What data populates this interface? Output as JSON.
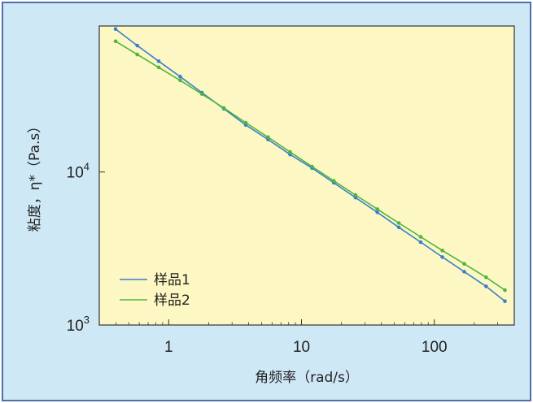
{
  "chart_data": {
    "type": "line",
    "xlabel": "角频率（rad/s）",
    "ylabel": "粘度，η*（Pa.s）",
    "xscale": "log",
    "yscale": "log",
    "xlim": [
      0.3,
      400
    ],
    "ylim": [
      1000,
      90000
    ],
    "xticks": [
      {
        "value": 1,
        "label": "1"
      },
      {
        "value": 10,
        "label": "10"
      },
      {
        "value": 100,
        "label": "100"
      }
    ],
    "yticks": [
      {
        "value": 1000,
        "base": "10",
        "exp": "3"
      },
      {
        "value": 10000,
        "base": "10",
        "exp": "4"
      }
    ],
    "grid": false,
    "legend_position": "bottom-left",
    "series": [
      {
        "name": "样品1",
        "color": "#3a7fc8",
        "x": [
          0.398,
          0.58,
          0.84,
          1.22,
          1.78,
          2.6,
          3.8,
          5.6,
          8.2,
          12,
          17.5,
          25.5,
          37.2,
          54,
          79,
          115,
          168,
          245,
          340
        ],
        "y": [
          86000,
          67000,
          53000,
          42000,
          33000,
          25900,
          20300,
          16300,
          13000,
          10600,
          8500,
          6800,
          5450,
          4350,
          3480,
          2780,
          2230,
          1790,
          1430
        ]
      },
      {
        "name": "样品2",
        "color": "#4fb53f",
        "x": [
          0.398,
          0.58,
          0.84,
          1.22,
          1.78,
          2.6,
          3.8,
          5.6,
          8.2,
          12,
          17.5,
          25.5,
          37.2,
          54,
          79,
          115,
          168,
          245,
          340
        ],
        "y": [
          71500,
          58600,
          48300,
          39700,
          32300,
          26200,
          21000,
          16900,
          13500,
          10850,
          8750,
          7070,
          5720,
          4640,
          3770,
          3070,
          2510,
          2050,
          1690
        ]
      }
    ]
  }
}
